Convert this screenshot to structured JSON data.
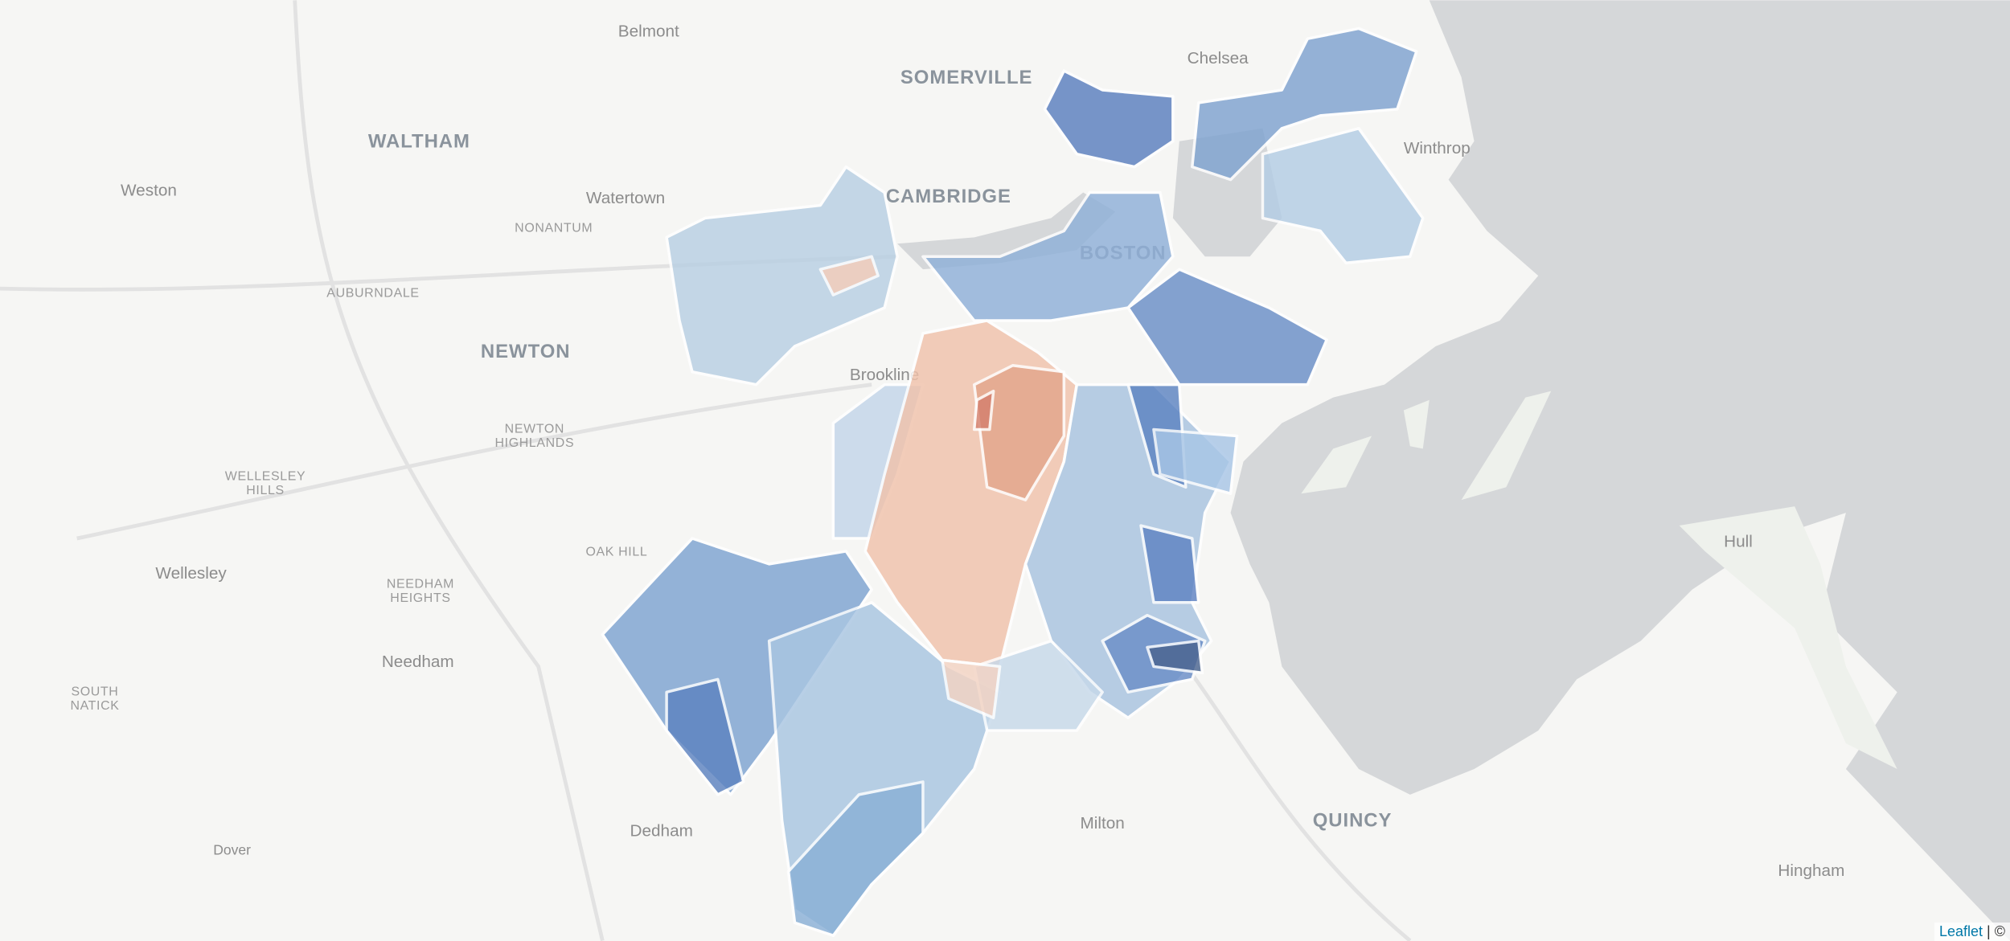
{
  "map": {
    "labels": [
      "Belmont",
      "SOMERVILLE",
      "Chelsea",
      "WALTHAM",
      "Winthrop",
      "Weston",
      "Watertown",
      "CAMBRIDGE",
      "NONANTUM",
      "BOSTON",
      "AUBURNDALE",
      "NEWTON",
      "Brookline",
      [
        "NEWTON",
        "HIGHLANDS"
      ],
      [
        "WELLESLEY",
        "HILLS"
      ],
      "OAK HILL",
      "Wellesley",
      "Hull",
      [
        "NEEDHAM",
        "HEIGHTS"
      ],
      "Needham",
      [
        "SOUTH",
        "NATICK"
      ],
      "Dedham",
      "Milton",
      "QUINCY",
      "Dover",
      "Hingham"
    ],
    "attribution": {
      "link": "Leaflet",
      "separator": "|",
      "symbol": "©"
    }
  }
}
